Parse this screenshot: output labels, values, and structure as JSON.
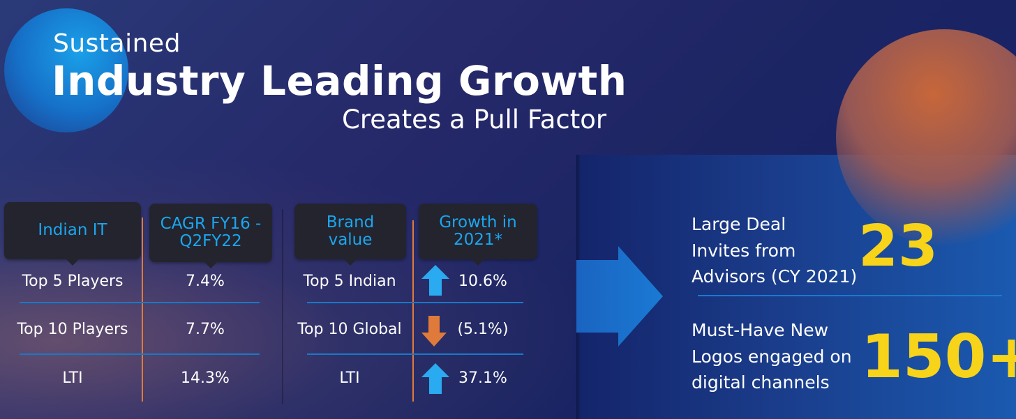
{
  "title": {
    "line1": "Sustained",
    "line2": "Industry Leading Growth",
    "line3": "Creates a Pull Factor"
  },
  "table1": {
    "headers": [
      "Indian IT",
      "CAGR FY16 - Q2FY22"
    ],
    "rows": [
      {
        "label": "Top 5 Players",
        "value": "7.4%"
      },
      {
        "label": "Top 10 Players",
        "value": "7.7%"
      },
      {
        "label": "LTI",
        "value": "14.3%"
      }
    ]
  },
  "table2": {
    "headers": [
      "Brand value",
      "Growth in 2021*"
    ],
    "rows": [
      {
        "label": "Top 5 Indian",
        "trend": "up",
        "value": "10.6%"
      },
      {
        "label": "Top 10 Global",
        "trend": "down",
        "value": "(5.1%)"
      },
      {
        "label": "LTI",
        "trend": "up",
        "value": "37.1%"
      }
    ]
  },
  "highlights": [
    {
      "text_lines": [
        "Large Deal",
        "Invites from",
        "Advisors (CY 2021)"
      ],
      "value": "23"
    },
    {
      "text_lines": [
        "Must-Have New",
        "Logos engaged on",
        "digital channels"
      ],
      "value": "150+"
    }
  ],
  "colors": {
    "accent_blue": "#1aa6f0",
    "accent_orange": "#e07a3a",
    "highlight_yellow": "#f7d31a"
  }
}
